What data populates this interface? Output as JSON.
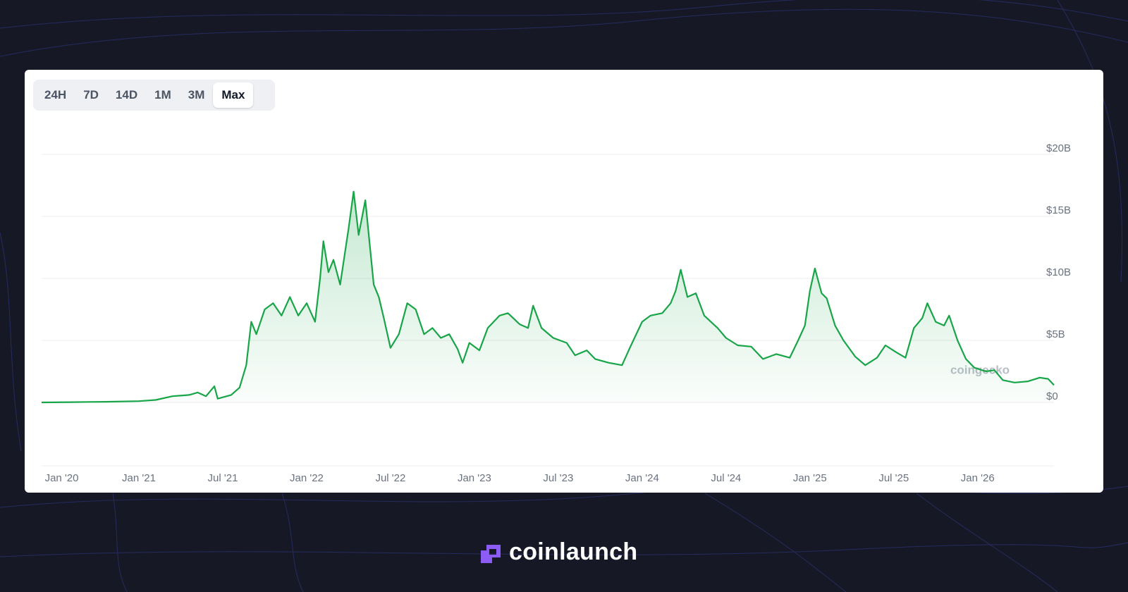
{
  "ui": {
    "ranges": [
      {
        "label": "24H",
        "selected": false
      },
      {
        "label": "7D",
        "selected": false
      },
      {
        "label": "14D",
        "selected": false
      },
      {
        "label": "1M",
        "selected": false
      },
      {
        "label": "3M",
        "selected": false
      },
      {
        "label": "Max",
        "selected": true
      }
    ]
  },
  "chart_data": {
    "type": "line",
    "color": "#18a548",
    "grid": true,
    "watermark": "coingecko",
    "x": [
      2020.42,
      2020.6,
      2020.8,
      2021.0,
      2021.1,
      2021.2,
      2021.3,
      2021.35,
      2021.4,
      2021.45,
      2021.47,
      2021.55,
      2021.6,
      2021.64,
      2021.67,
      2021.7,
      2021.75,
      2021.8,
      2021.85,
      2021.9,
      2021.95,
      2022.0,
      2022.05,
      2022.08,
      2022.1,
      2022.13,
      2022.16,
      2022.2,
      2022.25,
      2022.28,
      2022.31,
      2022.35,
      2022.4,
      2022.43,
      2022.46,
      2022.5,
      2022.55,
      2022.6,
      2022.65,
      2022.7,
      2022.75,
      2022.8,
      2022.85,
      2022.9,
      2022.93,
      2022.97,
      2023.03,
      2023.08,
      2023.15,
      2023.2,
      2023.27,
      2023.32,
      2023.35,
      2023.4,
      2023.47,
      2023.55,
      2023.6,
      2023.67,
      2023.72,
      2023.8,
      2023.88,
      2023.93,
      2024.0,
      2024.05,
      2024.12,
      2024.17,
      2024.2,
      2024.23,
      2024.27,
      2024.32,
      2024.37,
      2024.45,
      2024.5,
      2024.57,
      2024.65,
      2024.72,
      2024.8,
      2024.88,
      2024.93,
      2024.97,
      2025.0,
      2025.03,
      2025.07,
      2025.1,
      2025.15,
      2025.2,
      2025.27,
      2025.33,
      2025.4,
      2025.45,
      2025.52,
      2025.57,
      2025.62,
      2025.67,
      2025.7,
      2025.75,
      2025.8,
      2025.83,
      2025.88,
      2025.93,
      2025.98,
      2026.05,
      2026.1,
      2026.15,
      2026.22,
      2026.3,
      2026.37,
      2026.42,
      2026.455
    ],
    "values": [
      0,
      0.02,
      0.05,
      0.1,
      0.2,
      0.5,
      0.6,
      0.8,
      0.5,
      1.3,
      0.3,
      0.6,
      1.2,
      3.0,
      6.5,
      5.5,
      7.5,
      8.0,
      7.0,
      8.5,
      7.0,
      8.0,
      6.5,
      10.0,
      13.0,
      10.5,
      11.5,
      9.5,
      14.0,
      17.0,
      13.5,
      16.3,
      9.5,
      8.5,
      6.8,
      4.4,
      5.5,
      8.0,
      7.5,
      5.5,
      6.0,
      5.2,
      5.5,
      4.3,
      3.2,
      4.8,
      4.2,
      6.0,
      7.0,
      7.2,
      6.3,
      6.0,
      7.8,
      6.0,
      5.2,
      4.8,
      3.8,
      4.2,
      3.5,
      3.2,
      3.0,
      4.5,
      6.5,
      7.0,
      7.2,
      8.0,
      9.0,
      10.7,
      8.5,
      8.8,
      7.0,
      6.0,
      5.2,
      4.6,
      4.5,
      3.5,
      3.9,
      3.6,
      5.0,
      6.2,
      9.0,
      10.8,
      8.8,
      8.4,
      6.2,
      5.0,
      3.7,
      3.0,
      3.6,
      4.6,
      4.0,
      3.6,
      6.0,
      6.8,
      8.0,
      6.5,
      6.2,
      7.0,
      5.0,
      3.5,
      2.8,
      2.5,
      2.6,
      1.8,
      1.6,
      1.7,
      2.0,
      1.9,
      1.4
    ],
    "xlim": [
      2020.42,
      2026.455
    ],
    "xticks": [
      {
        "value": 2020.54,
        "label": "Jan '20"
      },
      {
        "value": 2021,
        "label": "Jan '21"
      },
      {
        "value": 2021.5,
        "label": "Jul '21"
      },
      {
        "value": 2022,
        "label": "Jan '22"
      },
      {
        "value": 2022.5,
        "label": "Jul '22"
      },
      {
        "value": 2023,
        "label": "Jan '23"
      },
      {
        "value": 2023.5,
        "label": "Jul '23"
      },
      {
        "value": 2024,
        "label": "Jan '24"
      },
      {
        "value": 2024.5,
        "label": "Jul '24"
      },
      {
        "value": 2025,
        "label": "Jan '25"
      },
      {
        "value": 2025.5,
        "label": "Jul '25"
      },
      {
        "value": 2026,
        "label": "Jan '26"
      }
    ],
    "ylim": [
      0,
      20
    ],
    "yticks": [
      {
        "value": 0,
        "label": "$0"
      },
      {
        "value": 5,
        "label": "$5B"
      },
      {
        "value": 10,
        "label": "$10B"
      },
      {
        "value": 15,
        "label": "$15B"
      },
      {
        "value": 20,
        "label": "$20B"
      }
    ]
  },
  "brand": {
    "logo": "coinlaunch"
  }
}
